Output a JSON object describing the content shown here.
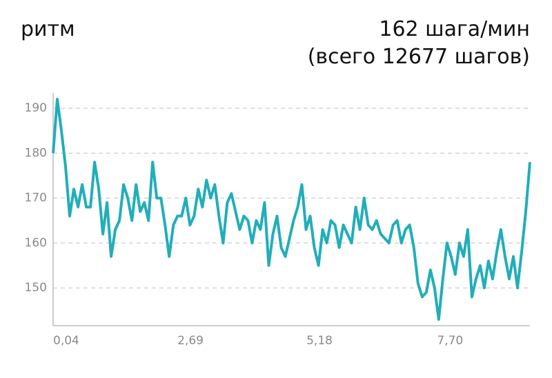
{
  "chart_data": {
    "type": "line",
    "title": "ритм",
    "subtitle": "162 шага/мин",
    "annotation": "(всего 12677 шагов)",
    "color": "#21aeb9",
    "grid": true,
    "xlim": [
      0.04,
      9.24
    ],
    "xticks": [
      {
        "value": 0.04,
        "label": "0,04"
      },
      {
        "value": 2.69,
        "label": "2,69"
      },
      {
        "value": 5.18,
        "label": "5,18"
      },
      {
        "value": 7.7,
        "label": "7,70"
      }
    ],
    "ylim": [
      141.6,
      193.4
    ],
    "yticks": [
      150,
      160,
      170,
      180,
      190
    ],
    "x": [
      0.04,
      0.12,
      0.2,
      0.28,
      0.36,
      0.44,
      0.52,
      0.6,
      0.68,
      0.76,
      0.84,
      0.92,
      1,
      1.08,
      1.16,
      1.24,
      1.32,
      1.4,
      1.48,
      1.56,
      1.64,
      1.72,
      1.8,
      1.88,
      1.96,
      2.04,
      2.12,
      2.2,
      2.28,
      2.36,
      2.44,
      2.52,
      2.6,
      2.68,
      2.76,
      2.84,
      2.92,
      3,
      3.08,
      3.16,
      3.24,
      3.32,
      3.4,
      3.48,
      3.56,
      3.64,
      3.72,
      3.8,
      3.88,
      3.96,
      4.04,
      4.12,
      4.2,
      4.28,
      4.36,
      4.44,
      4.52,
      4.6,
      4.68,
      4.76,
      4.84,
      4.92,
      5,
      5.08,
      5.16,
      5.24,
      5.32,
      5.4,
      5.48,
      5.56,
      5.64,
      5.72,
      5.8,
      5.88,
      5.96,
      6.04,
      6.12,
      6.2,
      6.28,
      6.36,
      6.44,
      6.52,
      6.6,
      6.68,
      6.76,
      6.84,
      6.92,
      7,
      7.08,
      7.16,
      7.24,
      7.32,
      7.4,
      7.48,
      7.56,
      7.64,
      7.72,
      7.8,
      7.88,
      7.96,
      8.04,
      8.12,
      8.2,
      8.28,
      8.36,
      8.44,
      8.52,
      8.6,
      8.68,
      8.76,
      8.84,
      8.92,
      9,
      9.08,
      9.16,
      9.24
    ],
    "values": [
      180,
      192,
      185,
      177,
      166,
      172,
      168,
      173,
      168,
      168,
      178,
      172,
      162,
      169,
      157,
      163,
      165,
      173,
      170,
      165,
      173,
      167,
      169,
      165,
      178,
      170,
      170,
      164,
      157,
      164,
      166,
      166,
      170,
      164,
      166,
      172,
      168,
      174,
      170,
      173,
      166,
      160,
      169,
      171,
      167,
      163,
      166,
      165,
      160,
      165,
      163,
      169,
      155,
      162,
      166,
      159,
      157,
      161,
      165,
      168,
      173,
      163,
      166,
      159,
      155,
      163,
      160,
      165,
      164,
      159,
      164,
      162,
      160,
      168,
      163,
      170,
      164,
      163,
      165,
      162,
      161,
      160,
      164,
      165,
      160,
      163,
      164,
      159,
      151,
      148,
      149,
      154,
      150,
      143,
      152,
      160,
      157,
      153,
      160,
      157,
      163,
      148,
      152,
      155,
      150,
      156,
      152,
      158,
      163,
      157,
      152,
      157,
      150,
      158,
      167,
      178
    ]
  }
}
